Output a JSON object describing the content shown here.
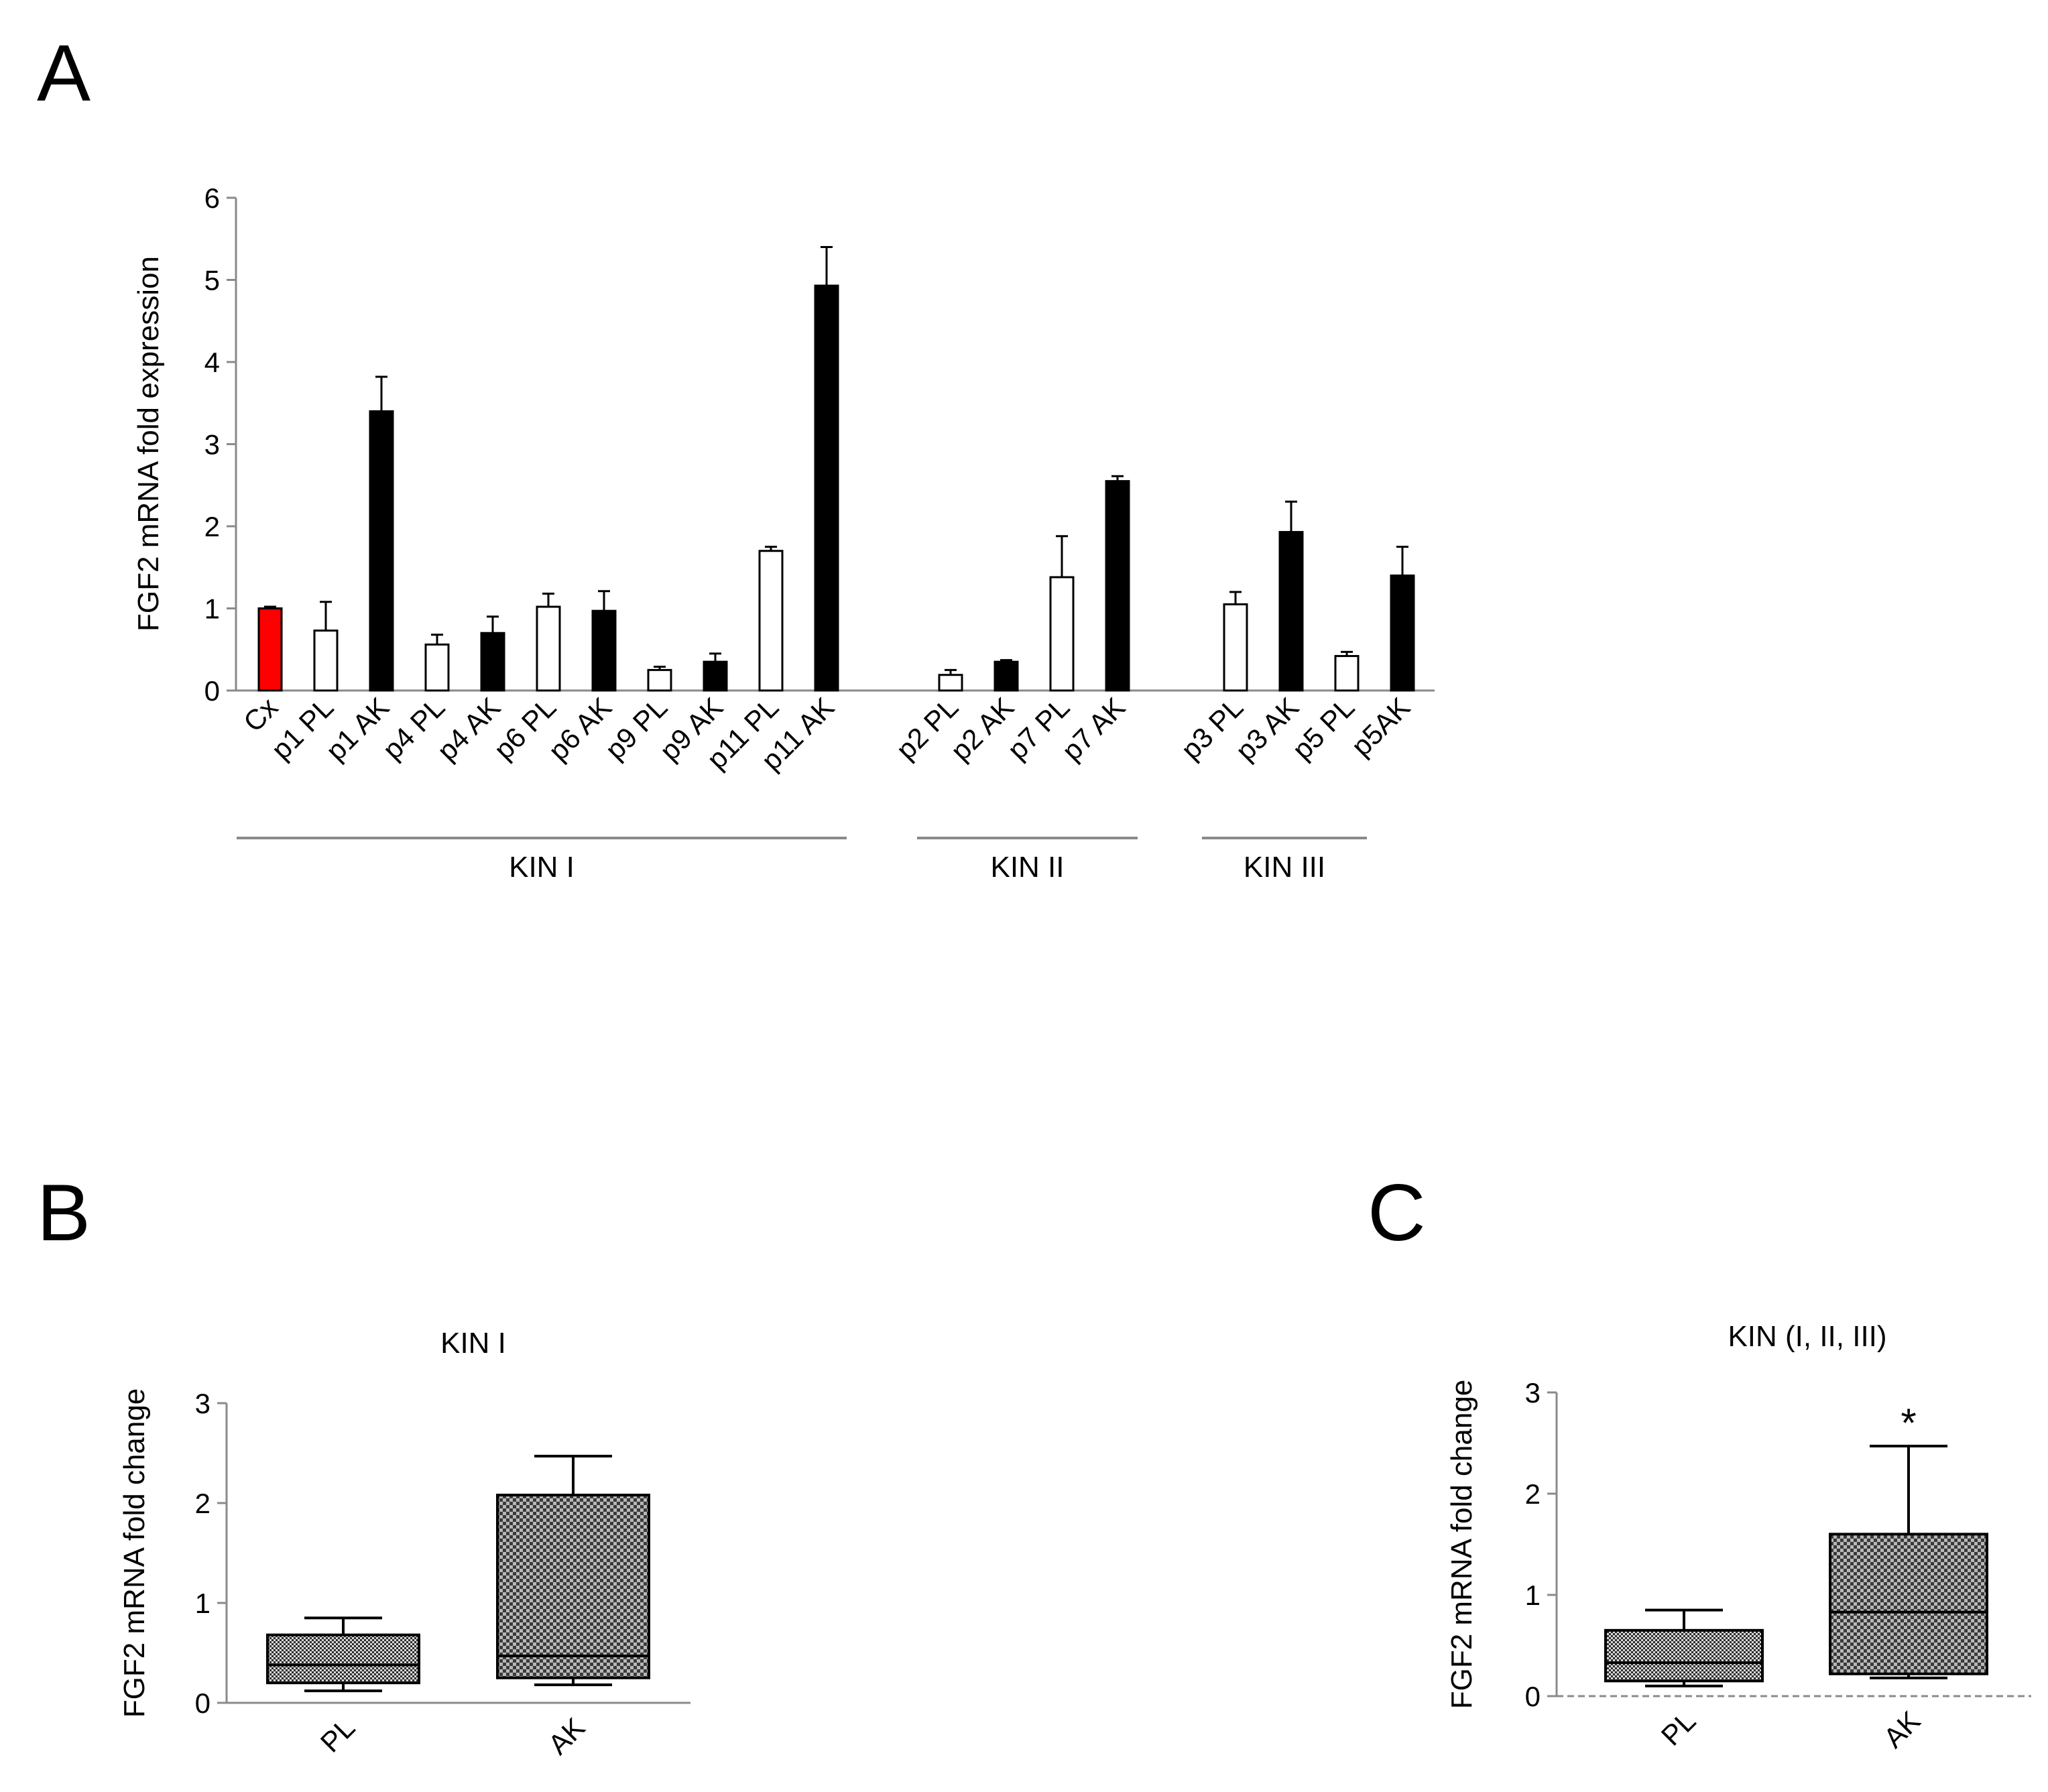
{
  "chart_data": [
    {
      "panel": "A",
      "type": "bar",
      "title": "",
      "xlabel": "",
      "ylabel": "FGF2 mRNA fold expression",
      "ylim": [
        0,
        6
      ],
      "yticks": [
        0,
        1,
        2,
        3,
        4,
        5,
        6
      ],
      "bars": [
        {
          "label": "Cx",
          "value": 1.0,
          "err": 0.02,
          "color": "#ff0000"
        },
        {
          "label": "p1 PL",
          "value": 0.73,
          "err": 0.35,
          "color": "#ffffff"
        },
        {
          "label": "p1 AK",
          "value": 3.4,
          "err": 0.42,
          "color": "#000000"
        },
        {
          "label": "p4 PL",
          "value": 0.56,
          "err": 0.12,
          "color": "#ffffff"
        },
        {
          "label": "p4 AK",
          "value": 0.7,
          "err": 0.2,
          "color": "#000000"
        },
        {
          "label": "p6 PL",
          "value": 1.02,
          "err": 0.16,
          "color": "#ffffff"
        },
        {
          "label": "p6 AK",
          "value": 0.97,
          "err": 0.24,
          "color": "#000000"
        },
        {
          "label": "p9 PL",
          "value": 0.25,
          "err": 0.04,
          "color": "#ffffff"
        },
        {
          "label": "p9 AK",
          "value": 0.35,
          "err": 0.1,
          "color": "#000000"
        },
        {
          "label": "p11 PL",
          "value": 1.7,
          "err": 0.05,
          "color": "#ffffff"
        },
        {
          "label": "p11 AK",
          "value": 4.93,
          "err": 0.47,
          "color": "#000000"
        },
        {
          "label": "p2 PL",
          "value": 0.19,
          "err": 0.06,
          "color": "#ffffff"
        },
        {
          "label": "p2 AK",
          "value": 0.35,
          "err": 0.02,
          "color": "#000000"
        },
        {
          "label": "p7 PL",
          "value": 1.38,
          "err": 0.5,
          "color": "#ffffff"
        },
        {
          "label": "p7 AK",
          "value": 2.55,
          "err": 0.06,
          "color": "#000000"
        },
        {
          "label": "p3 PL",
          "value": 1.05,
          "err": 0.15,
          "color": "#ffffff"
        },
        {
          "label": "p3 AK",
          "value": 1.93,
          "err": 0.37,
          "color": "#000000"
        },
        {
          "label": "p5 PL",
          "value": 0.42,
          "err": 0.05,
          "color": "#ffffff"
        },
        {
          "label": "p5AK",
          "value": 1.4,
          "err": 0.35,
          "color": "#000000"
        }
      ],
      "groups": [
        {
          "label": "KIN I",
          "bars": [
            "Cx",
            "p11 AK"
          ]
        },
        {
          "label": "KIN II",
          "bars": [
            "p2 PL",
            "p7 AK"
          ]
        },
        {
          "label": "KIN III",
          "bars": [
            "p3 PL",
            "p5 PL"
          ]
        }
      ]
    },
    {
      "panel": "B",
      "type": "box",
      "title": "KIN I",
      "xlabel": "",
      "ylabel": "FGF2 mRNA fold change",
      "ylim": [
        0,
        3
      ],
      "yticks": [
        0,
        1,
        2,
        3
      ],
      "categories": [
        "PL",
        "AK"
      ],
      "boxes": [
        {
          "name": "PL",
          "min": 0.12,
          "q1": 0.2,
          "median": 0.38,
          "q3": 0.68,
          "max": 0.85
        },
        {
          "name": "AK",
          "min": 0.18,
          "q1": 0.25,
          "median": 0.47,
          "q3": 2.08,
          "max": 2.47
        }
      ]
    },
    {
      "panel": "C",
      "type": "box",
      "title": "KIN (I, II, III)",
      "xlabel": "",
      "ylabel": "FGF2 mRNA fold change",
      "ylim": [
        0,
        3
      ],
      "yticks": [
        0,
        1,
        2,
        3
      ],
      "categories": [
        "PL",
        "AK"
      ],
      "annotation": "*",
      "boxes": [
        {
          "name": "PL",
          "min": 0.1,
          "q1": 0.15,
          "median": 0.33,
          "q3": 0.65,
          "max": 0.85
        },
        {
          "name": "AK",
          "min": 0.18,
          "q1": 0.22,
          "median": 0.83,
          "q3": 1.6,
          "max": 2.47
        }
      ]
    }
  ]
}
